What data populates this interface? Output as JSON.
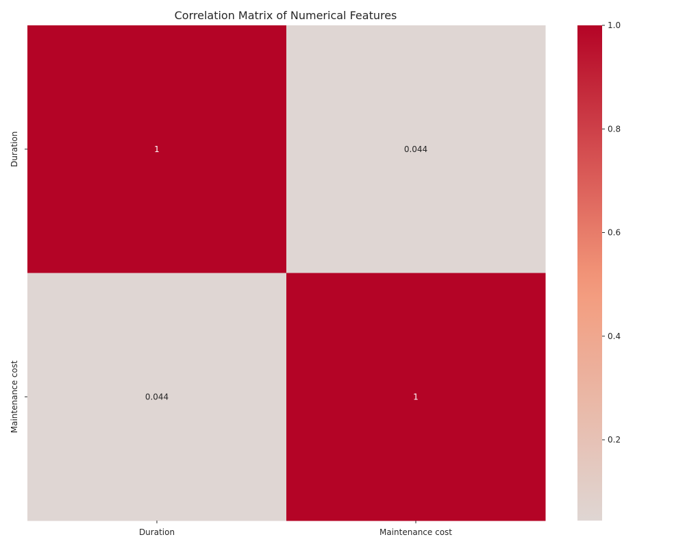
{
  "chart_data": {
    "type": "heatmap",
    "title": "Correlation Matrix of Numerical Features",
    "x_categories": [
      "Duration",
      "Maintenance cost"
    ],
    "y_categories": [
      "Duration",
      "Maintenance cost"
    ],
    "matrix": [
      [
        1,
        0.044
      ],
      [
        0.044,
        1
      ]
    ],
    "annotations": [
      [
        "1",
        "0.044"
      ],
      [
        "0.044",
        "1"
      ]
    ],
    "colormap": "coolwarm",
    "colorbar": {
      "range": [
        0.044,
        1.0
      ],
      "ticks": [
        0.2,
        0.4,
        0.6,
        0.8,
        1.0
      ],
      "tick_labels": [
        "0.2",
        "0.4",
        "0.6",
        "0.8",
        "1.0"
      ],
      "low_color": "#dddcdc",
      "high_color": "#b40426"
    },
    "grid": false
  }
}
